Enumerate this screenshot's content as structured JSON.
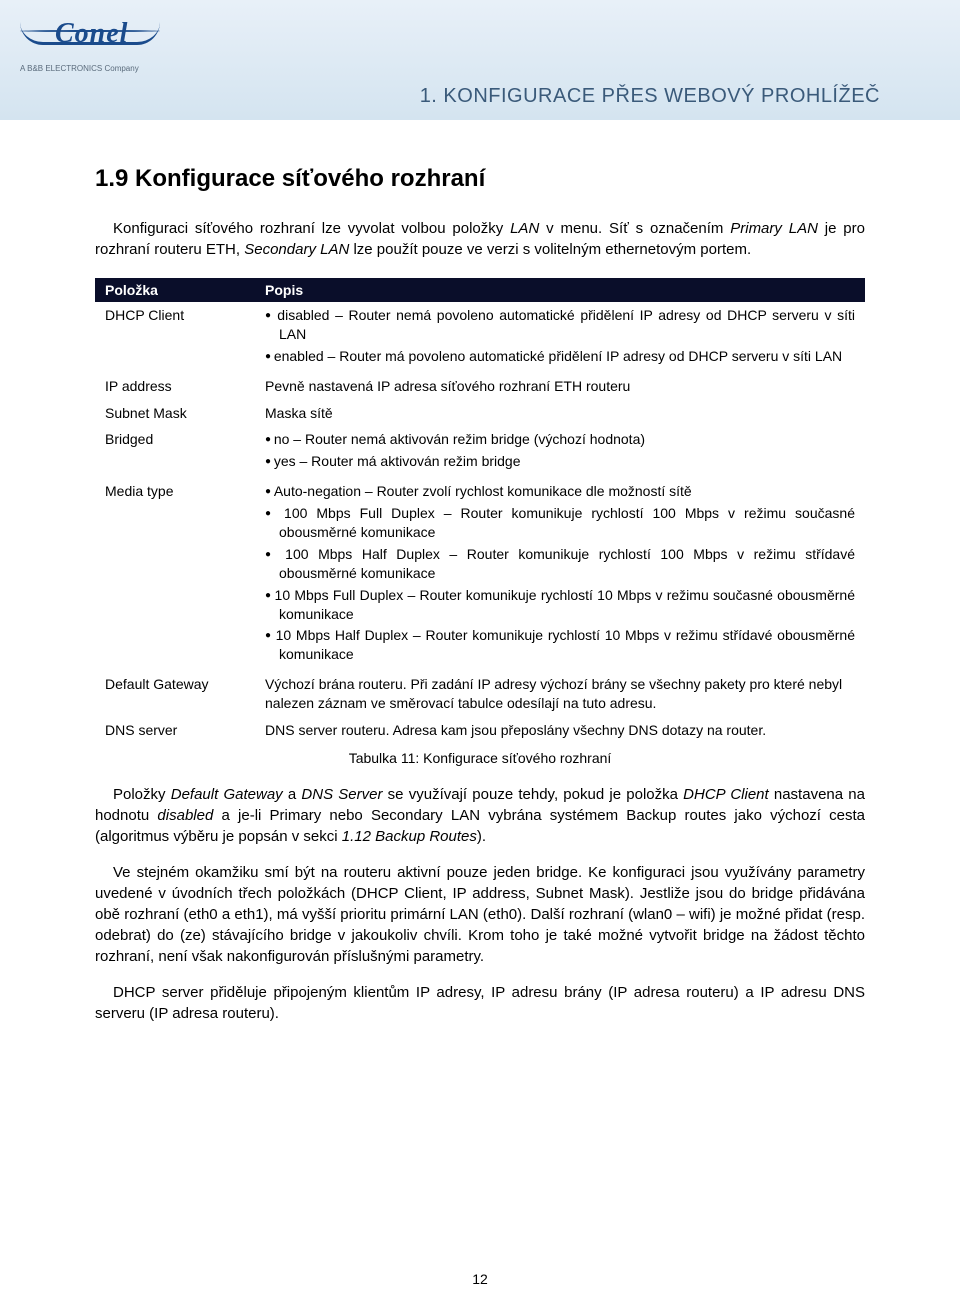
{
  "header": {
    "logo_text": "Conel",
    "logo_sub": "A  B&B ELECTRONICS  Company",
    "chapter": "1. KONFIGURACE PŘES WEBOVÝ PROHLÍŽEČ"
  },
  "section": {
    "number_title": "1.9   Konfigurace síťového rozhraní",
    "intro_1": "Konfiguraci síťového rozhraní lze vyvolat volbou položky ",
    "intro_lan": "LAN",
    "intro_2": " v menu. Síť s označením ",
    "intro_primary": "Primary LAN",
    "intro_3": " je pro rozhraní routeru ETH, ",
    "intro_secondary": "Secondary LAN",
    "intro_4": " lze použít pouze ve verzi s volitelným ethernetovým portem."
  },
  "table": {
    "head_key": "Položka",
    "head_desc": "Popis",
    "rows": [
      {
        "key": "DHCP Client",
        "bullets": [
          "disabled – Router nemá povoleno automatické přidělení IP adresy od DHCP serveru v síti LAN",
          "enabled – Router má povoleno automatické přidělení IP adresy od DHCP serveru v síti LAN"
        ]
      },
      {
        "key": "IP address",
        "text": "Pevně nastavená IP adresa síťového rozhraní ETH routeru"
      },
      {
        "key": "Subnet Mask",
        "text": "Maska sítě"
      },
      {
        "key": "Bridged",
        "bullets": [
          "no – Router nemá aktivován režim bridge (výchozí hodnota)",
          "yes – Router má aktivován režim bridge"
        ]
      },
      {
        "key": "Media type",
        "bullets": [
          "Auto-negation – Router zvolí rychlost komunikace dle možností sítě",
          "100 Mbps Full Duplex – Router komunikuje rychlostí 100 Mbps v režimu současné obousměrné komunikace",
          "100 Mbps Half Duplex – Router komunikuje rychlostí 100 Mbps v režimu střídavé obousměrné komunikace",
          "10 Mbps Full Duplex – Router komunikuje rychlostí 10 Mbps v režimu současné obousměrné komunikace",
          "10 Mbps Half Duplex – Router komunikuje rychlostí 10 Mbps v režimu střídavé obousměrné komunikace"
        ]
      },
      {
        "key": "Default Gateway",
        "text": "Výchozí brána routeru. Při zadání IP adresy výchozí brány se všechny pakety pro které nebyl nalezen záznam ve směrovací tabulce odesílají na tuto adresu."
      },
      {
        "key": "DNS server",
        "text": "DNS server routeru. Adresa kam jsou přeposlány všechny DNS dotazy na router."
      }
    ],
    "caption": "Tabulka 11: Konfigurace síťového rozhraní"
  },
  "body": {
    "p1": "Položky Default Gateway a DNS Server se využívají pouze tehdy, pokud je položka DHCP Client nastavena na hodnotu disabled a je-li Primary nebo Secondary LAN vybrána systémem Backup routes jako výchozí cesta (algoritmus výběru je popsán v sekci 1.12 Backup Routes).",
    "p2": "Ve stejném okamžiku smí být na routeru aktivní pouze jeden bridge. Ke konfiguraci jsou využívány parametry uvedené v úvodních třech položkách (DHCP Client, IP address, Subnet Mask). Jestliže jsou do bridge přidávána obě rozhraní (eth0 a eth1), má vyšší prioritu primární LAN (eth0). Další rozhraní (wlan0 – wifi) je možné přidat (resp. odebrat) do (ze) stávajícího bridge v jakoukoliv chvíli. Krom toho je také možné vytvořit bridge na žádost těchto rozhraní, není však nakonfigurován příslušnými parametry.",
    "p3": "DHCP server přiděluje připojeným klientům IP adresy, IP adresu brány (IP adresa routeru) a IP adresu DNS serveru (IP adresa routeru)."
  },
  "page_number": "12"
}
